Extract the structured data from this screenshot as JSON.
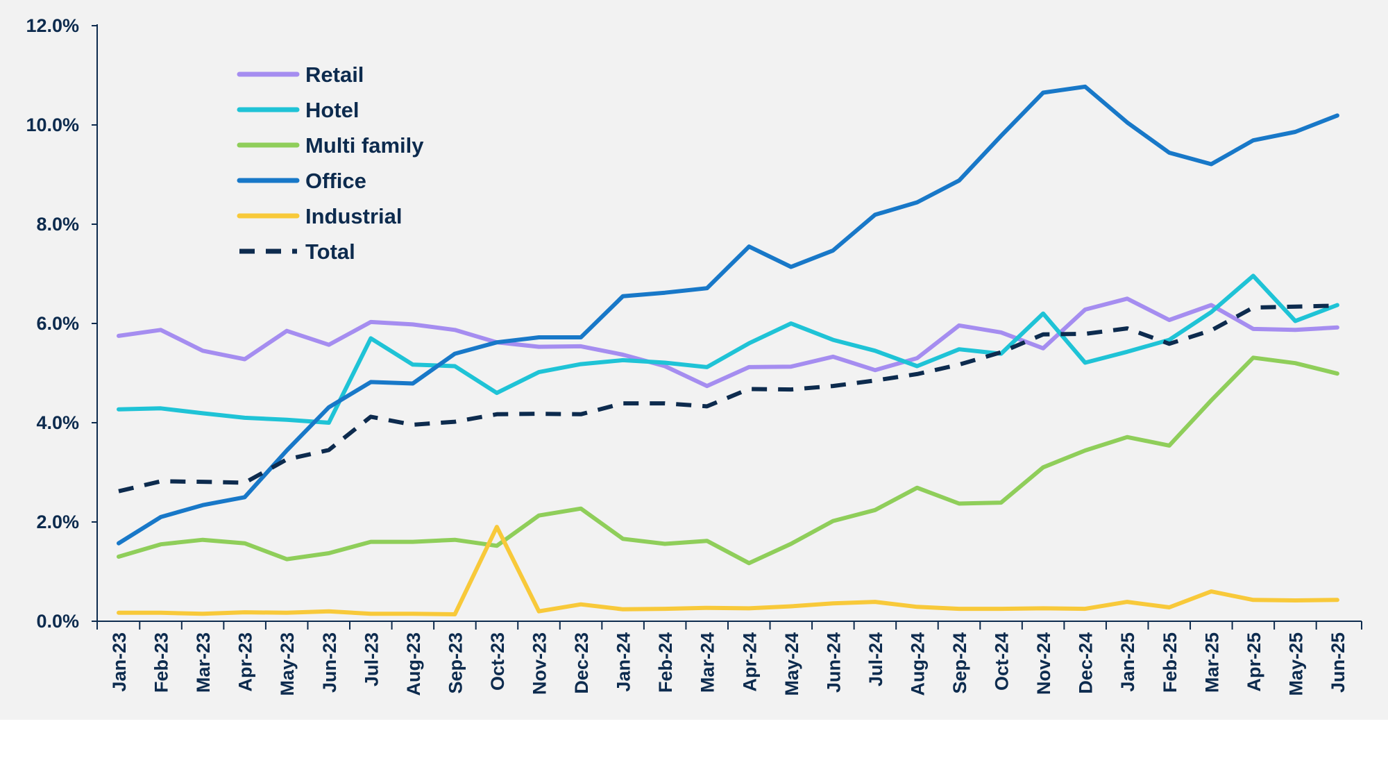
{
  "chart_data": {
    "type": "line",
    "title": "",
    "xlabel": "",
    "ylabel": "",
    "ylim": [
      0,
      12
    ],
    "y_ticks": [
      0,
      2,
      4,
      6,
      8,
      10,
      12
    ],
    "y_tick_labels": [
      "0.0%",
      "2.0%",
      "4.0%",
      "6.0%",
      "8.0%",
      "10.0%",
      "12.0%"
    ],
    "grid": false,
    "legend_position": "top-left",
    "categories": [
      "Jan-23",
      "Feb-23",
      "Mar-23",
      "Apr-23",
      "May-23",
      "Jun-23",
      "Jul-23",
      "Aug-23",
      "Sep-23",
      "Oct-23",
      "Nov-23",
      "Dec-23",
      "Jan-24",
      "Feb-24",
      "Mar-24",
      "Apr-24",
      "May-24",
      "Jun-24",
      "Jul-24",
      "Aug-24",
      "Sep-24",
      "Oct-24",
      "Nov-24",
      "Dec-24",
      "Jan-25",
      "Feb-25",
      "Mar-25",
      "Apr-25",
      "May-25",
      "Jun-25"
    ],
    "series": [
      {
        "name": "Retail",
        "color": "#a58df0",
        "dashed": false,
        "values": [
          5.75,
          5.87,
          5.45,
          5.28,
          5.85,
          5.57,
          6.03,
          5.98,
          5.87,
          5.62,
          5.53,
          5.54,
          5.37,
          5.14,
          4.74,
          5.12,
          5.13,
          5.33,
          5.06,
          5.3,
          5.96,
          5.82,
          5.5,
          6.28,
          6.5,
          6.07,
          6.37,
          5.89,
          5.87,
          5.92
        ]
      },
      {
        "name": "Hotel",
        "color": "#1fc3d6",
        "dashed": false,
        "values": [
          4.27,
          4.29,
          4.19,
          4.1,
          4.06,
          4.0,
          5.7,
          5.17,
          5.14,
          4.6,
          5.02,
          5.18,
          5.26,
          5.21,
          5.12,
          5.6,
          6.0,
          5.67,
          5.45,
          5.14,
          5.48,
          5.39,
          6.2,
          5.21,
          5.43,
          5.67,
          6.23,
          6.96,
          6.05,
          6.37
        ]
      },
      {
        "name": "Multi family",
        "color": "#8fce5a",
        "dashed": false,
        "values": [
          1.3,
          1.55,
          1.64,
          1.57,
          1.25,
          1.37,
          1.6,
          1.6,
          1.64,
          1.52,
          2.13,
          2.27,
          1.66,
          1.56,
          1.62,
          1.17,
          1.56,
          2.02,
          2.24,
          2.69,
          2.37,
          2.39,
          3.1,
          3.44,
          3.71,
          3.54,
          4.45,
          5.31,
          5.2,
          4.99
        ]
      },
      {
        "name": "Office",
        "color": "#1878c8",
        "dashed": false,
        "values": [
          1.57,
          2.1,
          2.34,
          2.5,
          3.44,
          4.31,
          4.82,
          4.79,
          5.39,
          5.62,
          5.72,
          5.72,
          6.55,
          6.62,
          6.71,
          7.55,
          7.14,
          7.47,
          8.19,
          8.44,
          8.88,
          9.78,
          10.65,
          10.77,
          10.05,
          9.44,
          9.21,
          9.69,
          9.86,
          10.19
        ]
      },
      {
        "name": "Industrial",
        "color": "#f8c93a",
        "dashed": false,
        "values": [
          0.17,
          0.17,
          0.15,
          0.18,
          0.17,
          0.2,
          0.15,
          0.15,
          0.14,
          1.9,
          0.2,
          0.34,
          0.24,
          0.25,
          0.27,
          0.26,
          0.3,
          0.36,
          0.39,
          0.29,
          0.25,
          0.25,
          0.26,
          0.25,
          0.39,
          0.28,
          0.6,
          0.43,
          0.42,
          0.43
        ]
      },
      {
        "name": "Total",
        "color": "#0d2b4e",
        "dashed": true,
        "values": [
          2.62,
          2.82,
          2.81,
          2.79,
          3.26,
          3.45,
          4.12,
          3.96,
          4.02,
          4.17,
          4.18,
          4.17,
          4.39,
          4.39,
          4.33,
          4.68,
          4.67,
          4.74,
          4.85,
          4.98,
          5.17,
          5.42,
          5.78,
          5.79,
          5.9,
          5.59,
          5.86,
          6.32,
          6.34,
          6.36
        ]
      }
    ]
  }
}
